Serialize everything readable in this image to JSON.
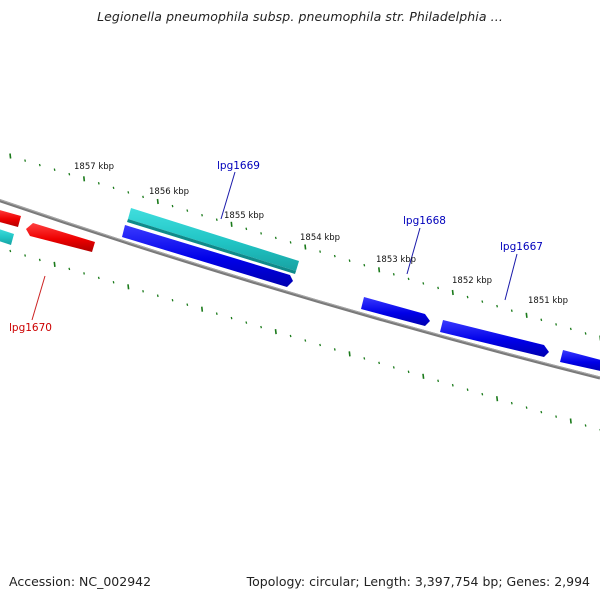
{
  "header": {
    "title": "Legionella pneumophila subsp. pneumophila str. Philadelphia ..."
  },
  "footer": {
    "accession": "Accession: NC_002942",
    "stats": "Topology: circular; Length: 3,397,754 bp; Genes: 2,994"
  },
  "colors": {
    "backbone": "#808080",
    "tick_green": "#1a7a1a",
    "gene_blue": "#0000ee",
    "gene_cyan": "#20c8c8",
    "gene_red": "#ee0000",
    "label_blue": "#0000bb",
    "label_red": "#cc0000"
  },
  "scale_labels": [
    "1857 kbp",
    "1856 kbp",
    "1855 kbp",
    "1854 kbp",
    "1853 kbp",
    "1852 kbp",
    "1851 kbp"
  ],
  "genes": [
    {
      "name": "lpg1670",
      "color": "red"
    },
    {
      "name": "lpg1669",
      "color": "cyan"
    },
    {
      "name": "lpg1668",
      "color": "blue"
    },
    {
      "name": "lpg1667",
      "color": "blue"
    }
  ],
  "gene_labels": [
    "lpg1670",
    "lpg1669",
    "lpg1668",
    "lpg1667"
  ]
}
